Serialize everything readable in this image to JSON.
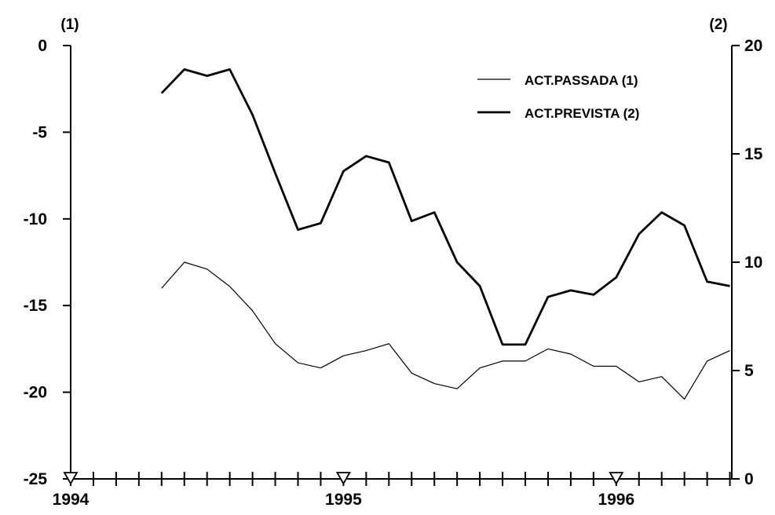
{
  "chart_data": {
    "type": "line",
    "x_dates": [
      "1994-05",
      "1994-06",
      "1994-07",
      "1994-08",
      "1994-09",
      "1994-10",
      "1994-11",
      "1994-12",
      "1995-01",
      "1995-02",
      "1995-03",
      "1995-04",
      "1995-05",
      "1995-06",
      "1995-07",
      "1995-08",
      "1995-09",
      "1995-10",
      "1995-11",
      "1995-12",
      "1996-01",
      "1996-02",
      "1996-03",
      "1996-04",
      "1996-05",
      "1996-06"
    ],
    "xlim": [
      "1994-01",
      "1996-06"
    ],
    "x_ticks": [
      "1994",
      "1995",
      "1996"
    ],
    "series": [
      {
        "name": "ACT.PASSADA (1)",
        "axis": "left",
        "values": [
          -14.0,
          -12.5,
          -12.9,
          -13.9,
          -15.3,
          -17.2,
          -18.3,
          -18.6,
          -17.9,
          -17.6,
          -17.2,
          -18.9,
          -19.5,
          -19.8,
          -18.6,
          -18.2,
          -18.2,
          -17.5,
          -17.8,
          -18.5,
          -18.5,
          -19.4,
          -19.1,
          -20.4,
          -18.2,
          -17.6
        ],
        "color": "#000000",
        "weight": "thin"
      },
      {
        "name": "ACT.PREVISTA (2)",
        "axis": "right",
        "values": [
          17.8,
          18.9,
          18.6,
          18.9,
          16.8,
          14.1,
          11.5,
          11.8,
          14.2,
          14.9,
          14.6,
          11.9,
          12.3,
          10.0,
          8.9,
          6.2,
          6.2,
          8.4,
          8.7,
          8.5,
          9.3,
          11.3,
          12.3,
          11.7,
          9.1,
          8.9
        ],
        "color": "#000000",
        "weight": "thick"
      }
    ],
    "y_left": {
      "label": "(1)",
      "ylim": [
        -25,
        0
      ],
      "ticks": [
        0,
        -5,
        -10,
        -15,
        -20,
        -25
      ],
      "tick_labels": [
        "0",
        "-5",
        "-10",
        "-15",
        "-20",
        "-25"
      ]
    },
    "y_right": {
      "label": "(2)",
      "ylim": [
        0,
        20
      ],
      "ticks": [
        20,
        15,
        10,
        5,
        0
      ],
      "tick_labels": [
        "20",
        "15",
        "10",
        "5",
        "0"
      ]
    },
    "markers": {
      "symbol": "triangle-down-open",
      "at": [
        "1994-01",
        "1995-01",
        "1996-01"
      ]
    },
    "grid": false,
    "legend": {
      "placement": "top-right",
      "entries": [
        "ACT.PASSADA (1)",
        "ACT.PREVISTA (2)"
      ]
    }
  }
}
